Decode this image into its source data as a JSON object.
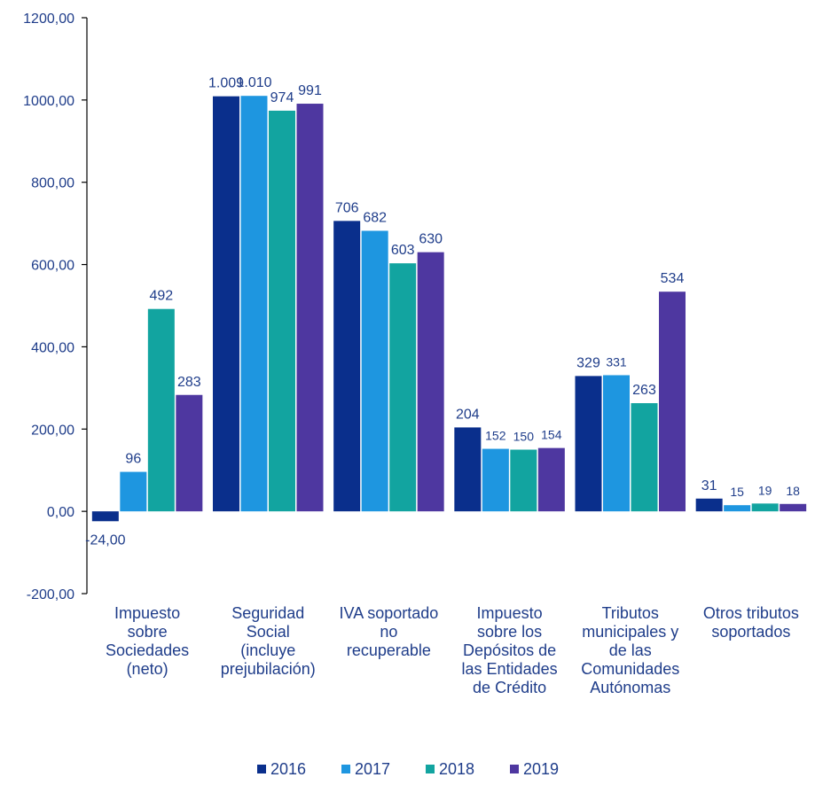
{
  "chart_data": {
    "type": "bar",
    "title": "",
    "xlabel": "",
    "ylabel": "",
    "ylim": [
      -200,
      1200
    ],
    "yticks": [
      -200,
      0,
      200,
      400,
      600,
      800,
      1000,
      1200
    ],
    "ytick_labels": [
      "-200,00",
      "0,00",
      "200,00",
      "400,00",
      "600,00",
      "800,00",
      "1000,00",
      "1200,00"
    ],
    "grid": false,
    "legend_position": "bottom",
    "categories": [
      [
        "Impuesto",
        "sobre",
        "Sociedades",
        "(neto)"
      ],
      [
        "Seguridad",
        "Social",
        "(incluye",
        "prejubilación)"
      ],
      [
        "IVA soportado",
        "no",
        "recuperable"
      ],
      [
        "Impuesto",
        "sobre los",
        "Depósitos de",
        "las Entidades",
        "de Crédito"
      ],
      [
        "Tributos",
        "municipales y",
        "de las",
        "Comunidades",
        "Autónomas"
      ],
      [
        "Otros tributos",
        "soportados"
      ]
    ],
    "series": [
      {
        "name": "2016",
        "color": "#0a2f8c",
        "values": [
          -24,
          1009,
          706,
          204,
          329,
          31
        ],
        "labels": [
          "-24,00",
          "1.009",
          "706",
          "204",
          "329",
          "31"
        ]
      },
      {
        "name": "2017",
        "color": "#1e96e0",
        "values": [
          96,
          1010,
          682,
          152,
          331,
          15
        ],
        "labels": [
          "96",
          "1.010",
          "682",
          "152",
          "331",
          "15"
        ]
      },
      {
        "name": "2018",
        "color": "#12a4a0",
        "values": [
          492,
          974,
          603,
          150,
          263,
          19
        ],
        "labels": [
          "492",
          "974",
          "603",
          "150",
          "263",
          "19"
        ]
      },
      {
        "name": "2019",
        "color": "#4e37a0",
        "values": [
          283,
          991,
          630,
          154,
          534,
          18
        ],
        "labels": [
          "283",
          "991",
          "630",
          "154",
          "534",
          "18"
        ]
      }
    ]
  }
}
